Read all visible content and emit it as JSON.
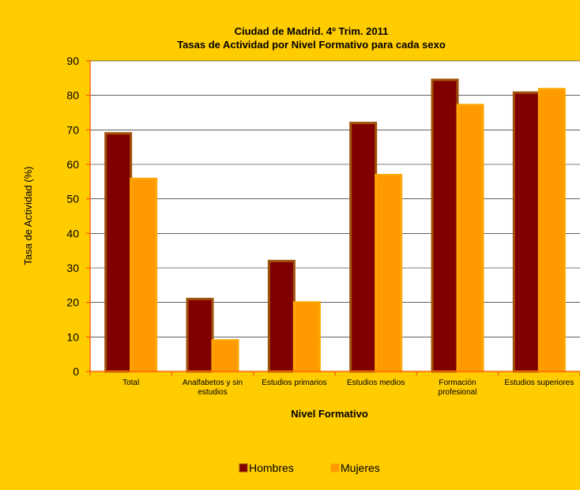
{
  "chart_data": {
    "type": "bar",
    "title": "Ciudad de Madrid. 4º Trim. 2011",
    "subtitle": "Tasas de Actividad por Nivel Formativo para cada sexo",
    "xlabel": "Nivel Formativo",
    "ylabel": "Tasa de Actividad (%)",
    "ylim": [
      0,
      90
    ],
    "yticks": [
      0,
      10,
      20,
      30,
      40,
      50,
      60,
      70,
      80,
      90
    ],
    "grid": true,
    "legend_position": "bottom",
    "categories": [
      [
        "Total"
      ],
      [
        "Analfabetos y sin",
        "estudios"
      ],
      [
        "Estudios primarios"
      ],
      [
        "Estudios medios"
      ],
      [
        "Formación",
        "profesional"
      ],
      [
        "Estudios superiores"
      ]
    ],
    "series": [
      {
        "name": "Hombres",
        "color": "#800000",
        "border": "#a0520a",
        "values": [
          69,
          21,
          32,
          72,
          84.5,
          80.8
        ]
      },
      {
        "name": "Mujeres",
        "color": "#ff9900",
        "border": "#ffa500",
        "values": [
          55.8,
          9,
          20,
          56.9,
          77.2,
          81.8
        ]
      }
    ],
    "colors": {
      "background": "#ffcc00",
      "plot_area": "#ffffff",
      "axis": "#ff6600",
      "gridline": "#000000"
    }
  }
}
